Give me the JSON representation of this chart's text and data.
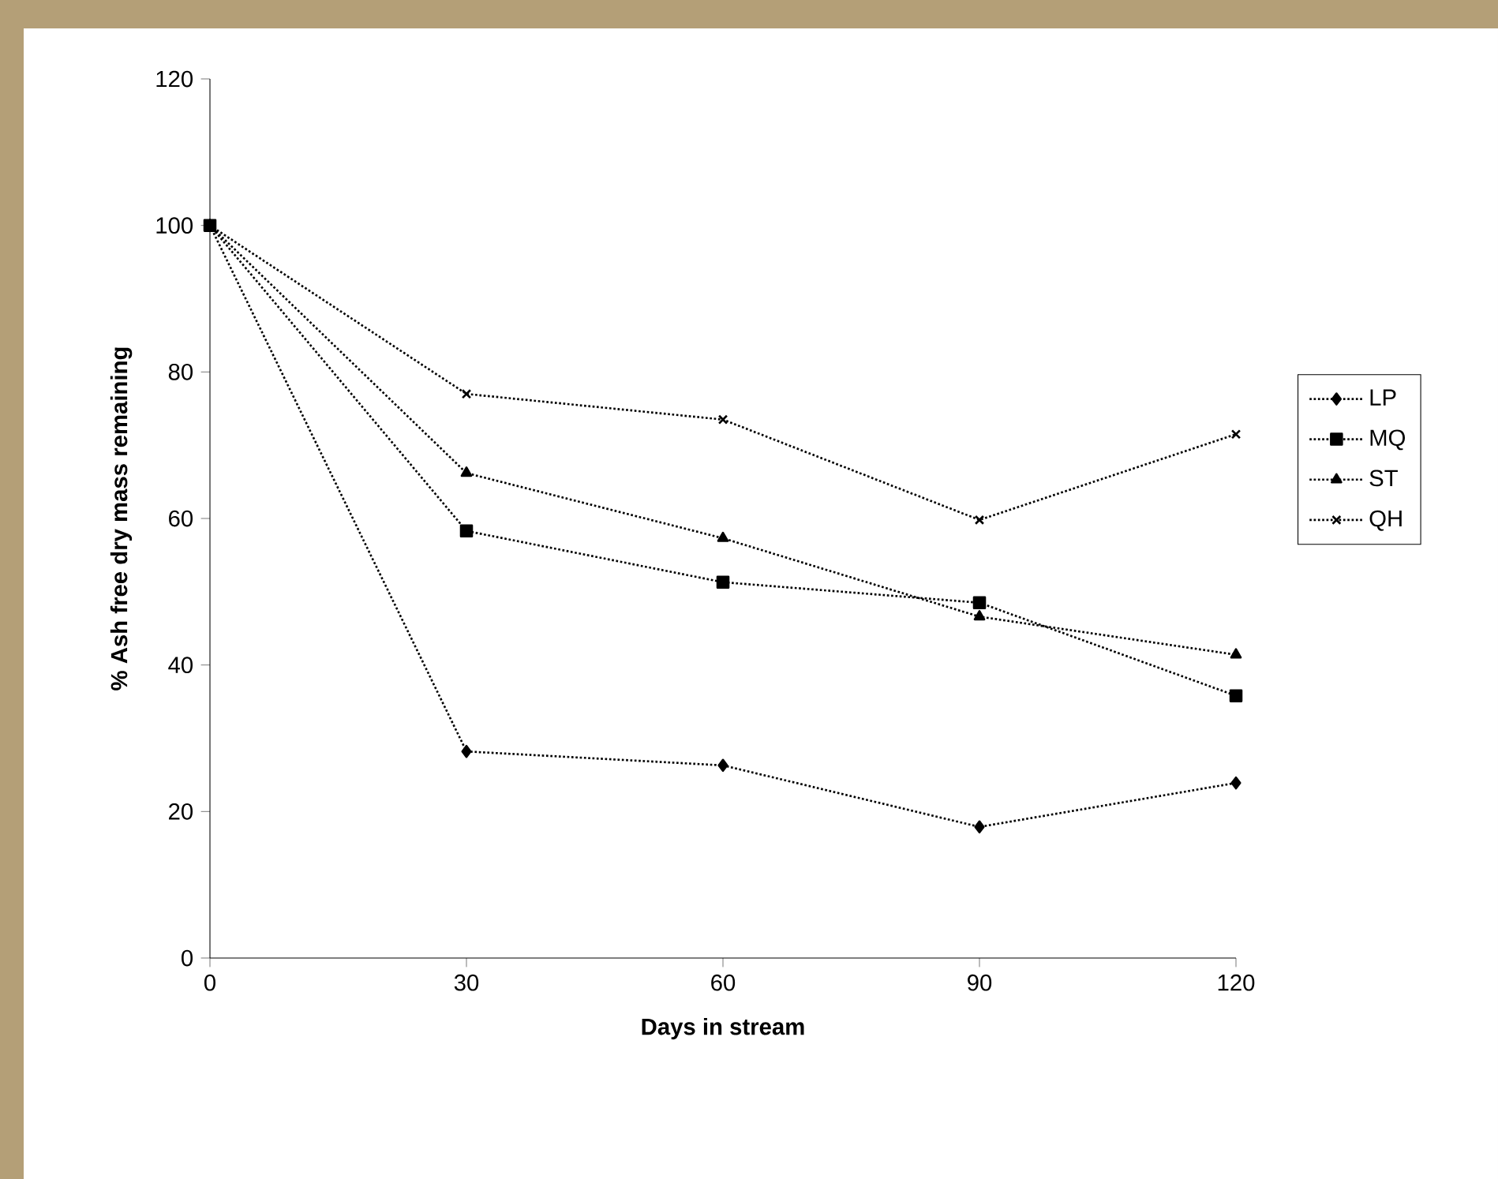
{
  "chart_data": {
    "type": "line",
    "xlabel": "Days in stream",
    "ylabel": "% Ash free dry mass remaining",
    "x": [
      0,
      30,
      60,
      90,
      120
    ],
    "xlim": [
      0,
      120
    ],
    "xticks": [
      0,
      30,
      60,
      90,
      120
    ],
    "ylim": [
      0,
      120
    ],
    "yticks": [
      0,
      20,
      40,
      60,
      80,
      100,
      120
    ],
    "grid": false,
    "legend": "right",
    "line_style": "dotted",
    "series": [
      {
        "name": "LP",
        "color": "#000000",
        "marker": "diamond",
        "values": [
          100,
          28.2,
          26.3,
          17.9,
          23.9
        ]
      },
      {
        "name": "MQ",
        "color": "#000000",
        "marker": "square",
        "values": [
          100,
          58.3,
          51.3,
          48.5,
          35.8
        ]
      },
      {
        "name": "ST",
        "color": "#000000",
        "marker": "triangle",
        "values": [
          100,
          66.2,
          57.3,
          46.6,
          41.4
        ]
      },
      {
        "name": "QH",
        "color": "#000000",
        "marker": "cross",
        "values": [
          100,
          77,
          73.5,
          59.8,
          71.5
        ]
      }
    ]
  }
}
